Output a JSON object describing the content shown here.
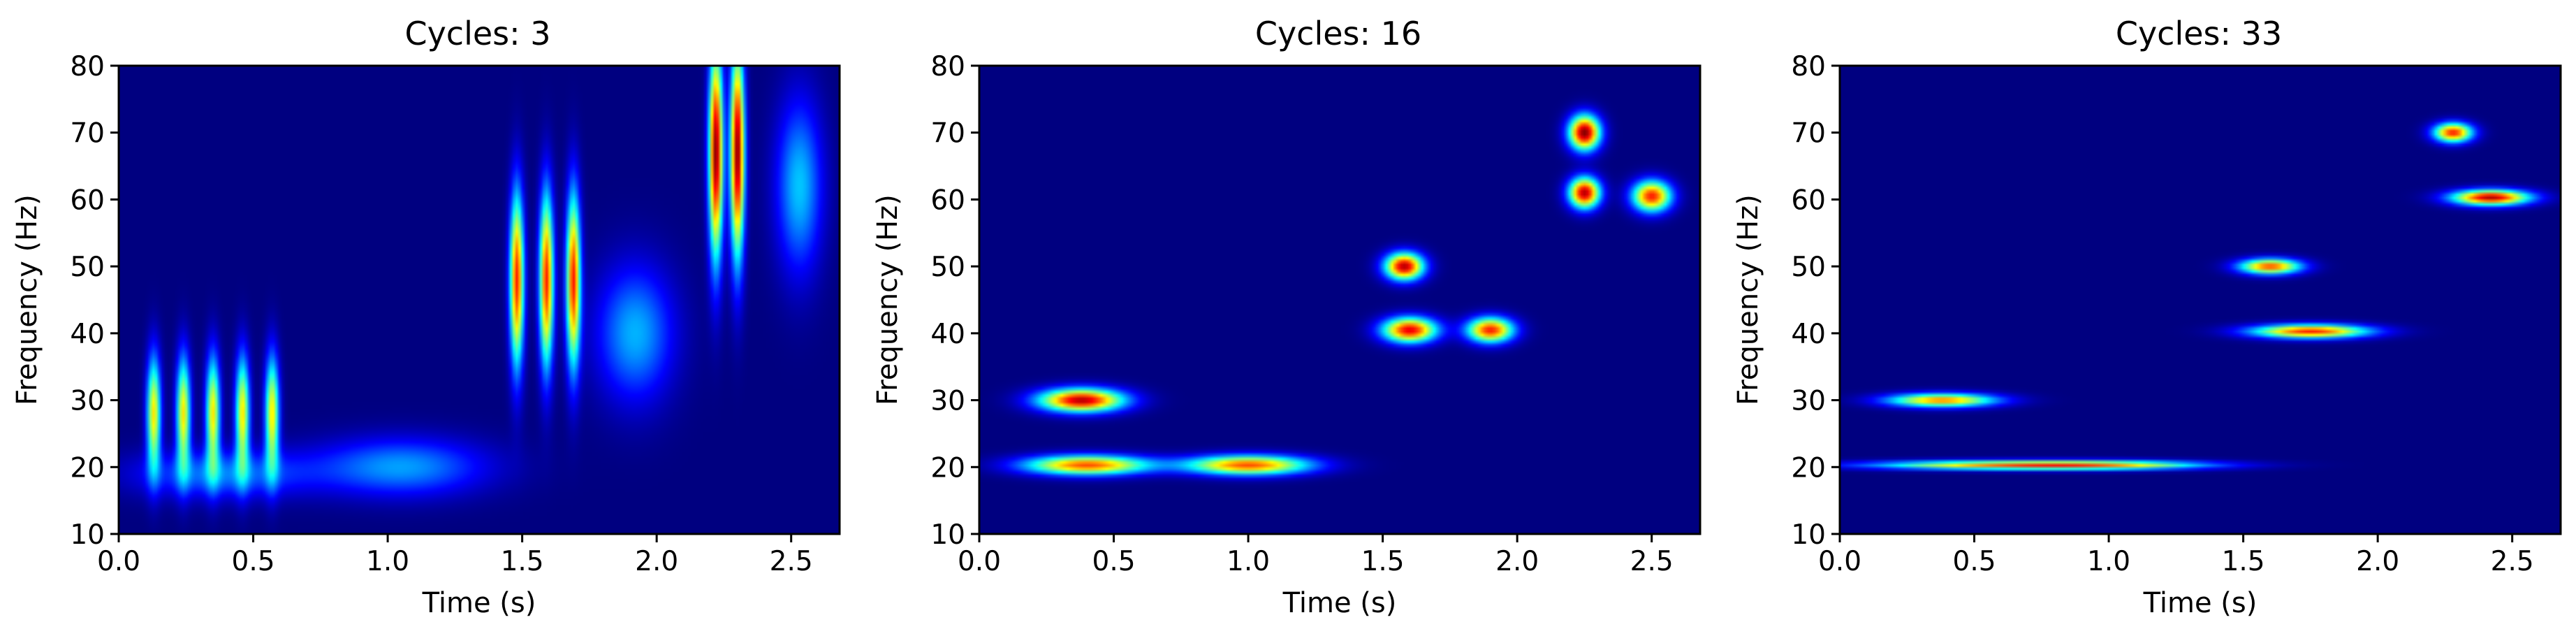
{
  "chart_data": [
    {
      "type": "heatmap",
      "title": "Cycles: 3",
      "xlabel": "Time (s)",
      "ylabel": "Frequency (Hz)",
      "xlim": [
        0,
        2.68
      ],
      "ylim": [
        10,
        80
      ],
      "xticks": [
        "0.0",
        "0.5",
        "1.0",
        "1.5",
        "2.0",
        "2.5"
      ],
      "yticks": [
        "10",
        "20",
        "30",
        "40",
        "50",
        "60",
        "70",
        "80"
      ],
      "colormap": "jet",
      "grid": false,
      "blobs": [
        {
          "t": 0.13,
          "f": 28,
          "st": 0.018,
          "sf": 6.0,
          "a": 0.65
        },
        {
          "t": 0.24,
          "f": 28,
          "st": 0.018,
          "sf": 6.0,
          "a": 0.65
        },
        {
          "t": 0.35,
          "f": 28,
          "st": 0.018,
          "sf": 6.0,
          "a": 0.65
        },
        {
          "t": 0.46,
          "f": 28,
          "st": 0.018,
          "sf": 6.0,
          "a": 0.65
        },
        {
          "t": 0.57,
          "f": 28,
          "st": 0.018,
          "sf": 6.0,
          "a": 0.65
        },
        {
          "t": 0.38,
          "f": 19,
          "st": 0.22,
          "sf": 2.5,
          "a": 0.25
        },
        {
          "t": 1.05,
          "f": 20,
          "st": 0.22,
          "sf": 3.0,
          "a": 0.28
        },
        {
          "t": 1.48,
          "f": 48,
          "st": 0.018,
          "sf": 9.0,
          "a": 0.85
        },
        {
          "t": 1.59,
          "f": 48,
          "st": 0.018,
          "sf": 9.0,
          "a": 0.85
        },
        {
          "t": 1.69,
          "f": 48,
          "st": 0.018,
          "sf": 9.0,
          "a": 0.85
        },
        {
          "t": 1.92,
          "f": 40,
          "st": 0.1,
          "sf": 7.0,
          "a": 0.3
        },
        {
          "t": 2.22,
          "f": 67,
          "st": 0.018,
          "sf": 11.0,
          "a": 1.0
        },
        {
          "t": 2.3,
          "f": 67,
          "st": 0.018,
          "sf": 11.0,
          "a": 1.0
        },
        {
          "t": 2.53,
          "f": 62,
          "st": 0.06,
          "sf": 9.0,
          "a": 0.32
        }
      ]
    },
    {
      "type": "heatmap",
      "title": "Cycles: 16",
      "xlabel": "Time (s)",
      "ylabel": "Frequency (Hz)",
      "xlim": [
        0,
        2.68
      ],
      "ylim": [
        10,
        80
      ],
      "xticks": [
        "0.0",
        "0.5",
        "1.0",
        "1.5",
        "2.0",
        "2.5"
      ],
      "yticks": [
        "10",
        "20",
        "30",
        "40",
        "50",
        "60",
        "70",
        "80"
      ],
      "colormap": "jet",
      "grid": false,
      "blobs": [
        {
          "t": 0.38,
          "f": 30,
          "st": 0.11,
          "sf": 1.2,
          "a": 0.95
        },
        {
          "t": 0.4,
          "f": 20.3,
          "st": 0.16,
          "sf": 1.0,
          "a": 0.8
        },
        {
          "t": 1.0,
          "f": 20.3,
          "st": 0.16,
          "sf": 1.0,
          "a": 0.8
        },
        {
          "t": 1.58,
          "f": 50,
          "st": 0.05,
          "sf": 1.4,
          "a": 0.95
        },
        {
          "t": 1.6,
          "f": 40.5,
          "st": 0.07,
          "sf": 1.3,
          "a": 0.9
        },
        {
          "t": 1.9,
          "f": 40.5,
          "st": 0.06,
          "sf": 1.3,
          "a": 0.85
        },
        {
          "t": 2.25,
          "f": 70,
          "st": 0.04,
          "sf": 1.8,
          "a": 1.0
        },
        {
          "t": 2.25,
          "f": 61,
          "st": 0.04,
          "sf": 1.6,
          "a": 0.95
        },
        {
          "t": 2.5,
          "f": 60.5,
          "st": 0.05,
          "sf": 1.6,
          "a": 0.85
        }
      ]
    },
    {
      "type": "heatmap",
      "title": "Cycles: 33",
      "xlabel": "Time (s)",
      "ylabel": "Frequency (Hz)",
      "xlim": [
        0,
        2.68
      ],
      "ylim": [
        10,
        80
      ],
      "xticks": [
        "0.0",
        "0.5",
        "1.0",
        "1.5",
        "2.0",
        "2.5"
      ],
      "yticks": [
        "10",
        "20",
        "30",
        "40",
        "50",
        "60",
        "70",
        "80"
      ],
      "colormap": "jet",
      "grid": false,
      "blobs": [
        {
          "t": 0.38,
          "f": 30,
          "st": 0.14,
          "sf": 0.7,
          "a": 0.75
        },
        {
          "t": 0.55,
          "f": 20.3,
          "st": 0.32,
          "sf": 0.45,
          "a": 0.6
        },
        {
          "t": 1.0,
          "f": 20.3,
          "st": 0.28,
          "sf": 0.45,
          "a": 0.55
        },
        {
          "t": 1.6,
          "f": 50,
          "st": 0.08,
          "sf": 0.8,
          "a": 0.8
        },
        {
          "t": 1.75,
          "f": 40.3,
          "st": 0.15,
          "sf": 0.7,
          "a": 0.85
        },
        {
          "t": 2.28,
          "f": 70,
          "st": 0.05,
          "sf": 1.0,
          "a": 0.85
        },
        {
          "t": 2.42,
          "f": 60.3,
          "st": 0.1,
          "sf": 0.8,
          "a": 0.95
        }
      ]
    }
  ]
}
